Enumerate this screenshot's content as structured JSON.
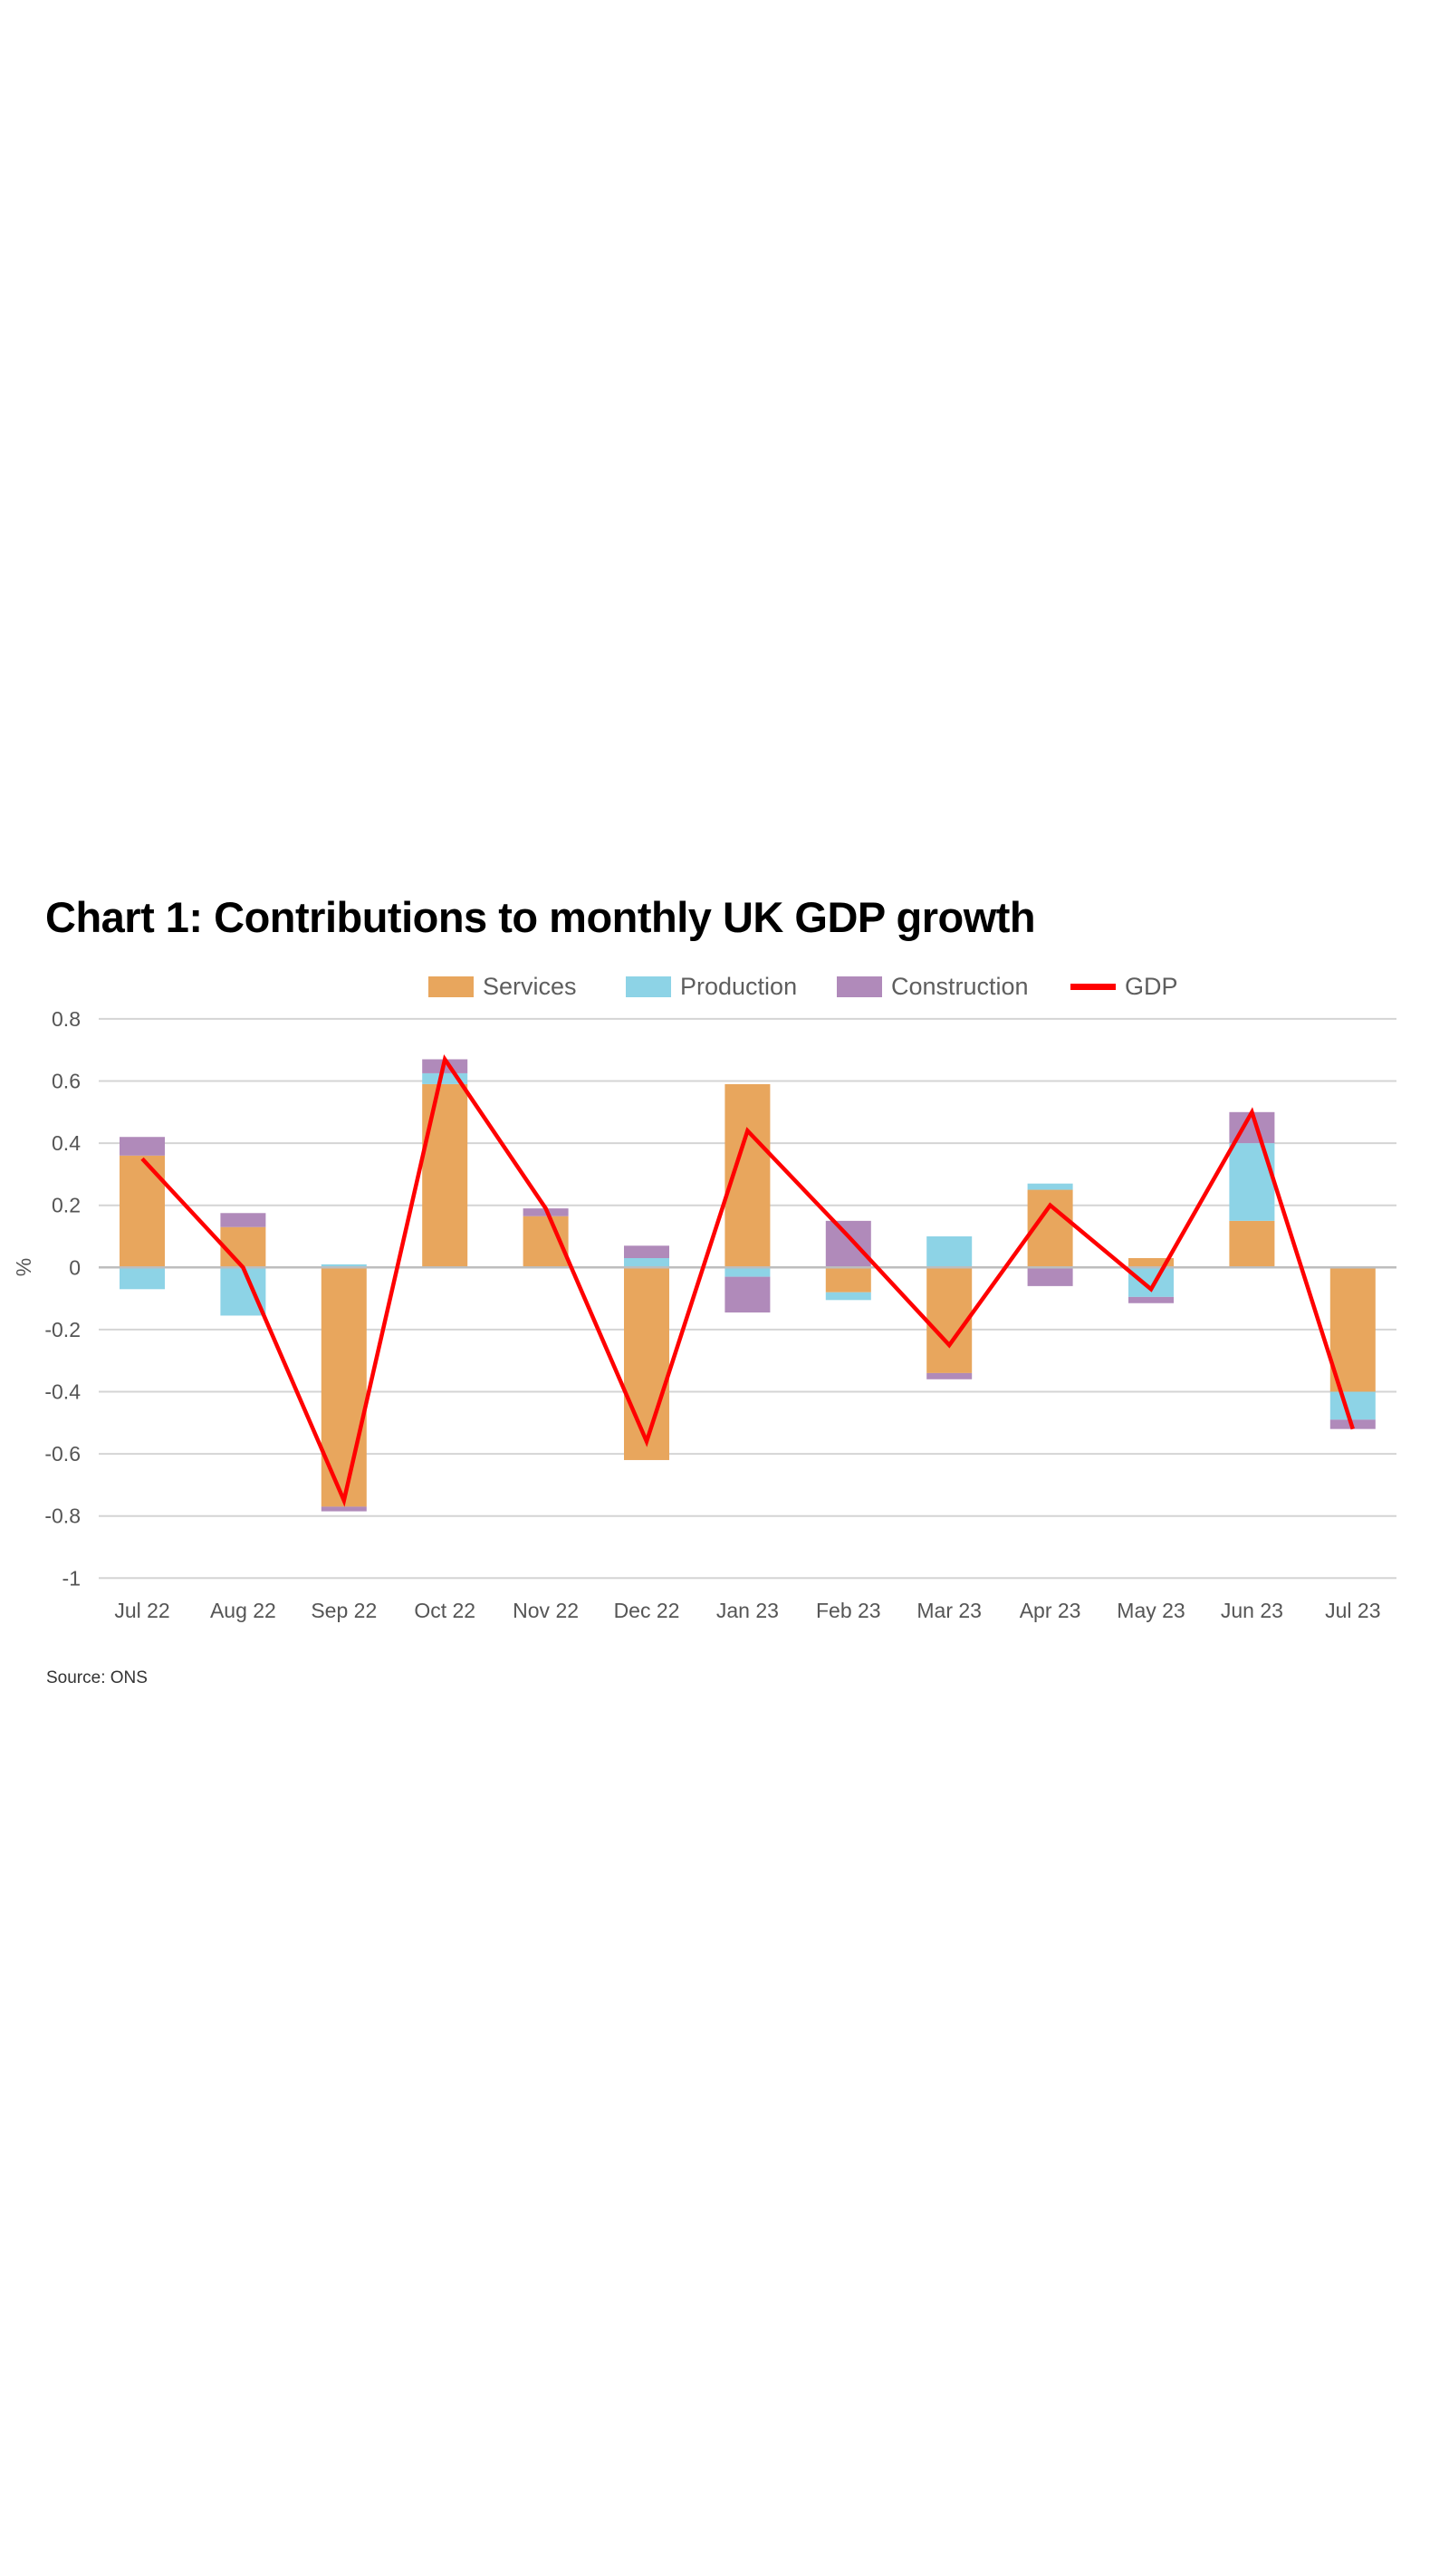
{
  "chart_data": {
    "type": "bar",
    "subtype": "stacked-bar-with-line",
    "title": "Chart 1: Contributions to monthly UK GDP growth",
    "xlabel": "",
    "ylabel": "%",
    "ylim": [
      -1,
      0.8
    ],
    "yticks": [
      0.8,
      0.6,
      0.4,
      0.2,
      0,
      -0.2,
      -0.4,
      -0.6,
      -0.8,
      -1
    ],
    "ytick_labels": [
      "0.8",
      "0.6",
      "0.4",
      "0.2",
      "0",
      "-0.2",
      "-0.4",
      "-0.6",
      "-0.8",
      "-1"
    ],
    "grid": true,
    "legend_position": "top",
    "categories": [
      "Jul 22",
      "Aug 22",
      "Sep 22",
      "Oct 22",
      "Nov 22",
      "Dec 22",
      "Jan 23",
      "Feb 23",
      "Mar 23",
      "Apr 23",
      "May 23",
      "Jun 23",
      "Jul 23"
    ],
    "series": [
      {
        "name": "Services",
        "kind": "bar",
        "color": "#E8A65D",
        "values": [
          0.36,
          0.13,
          -0.77,
          0.59,
          0.165,
          -0.62,
          0.59,
          -0.08,
          -0.34,
          0.25,
          0.03,
          0.15,
          -0.4
        ]
      },
      {
        "name": "Production",
        "kind": "bar",
        "color": "#8DD3E6",
        "values": [
          -0.07,
          -0.155,
          0.01,
          0.035,
          0.0,
          0.03,
          -0.03,
          -0.025,
          0.1,
          0.02,
          -0.095,
          0.25,
          -0.09
        ]
      },
      {
        "name": "Construction",
        "kind": "bar",
        "color": "#B08ABA",
        "values": [
          0.06,
          0.045,
          -0.015,
          0.045,
          0.025,
          0.04,
          -0.115,
          0.15,
          -0.02,
          -0.06,
          -0.02,
          0.1,
          -0.03
        ]
      },
      {
        "name": "GDP",
        "kind": "line",
        "color": "#FF0000",
        "values": [
          0.35,
          0.0,
          -0.75,
          0.67,
          0.19,
          -0.56,
          0.44,
          0.1,
          -0.25,
          0.2,
          -0.07,
          0.5,
          -0.52
        ]
      }
    ],
    "source": "Source: ONS"
  },
  "legend": {
    "items": [
      {
        "label": "Services",
        "color": "#E8A65D",
        "kind": "swatch"
      },
      {
        "label": "Production",
        "color": "#8DD3E6",
        "kind": "swatch"
      },
      {
        "label": "Construction",
        "color": "#B08ABA",
        "kind": "swatch"
      },
      {
        "label": "GDP",
        "color": "#FF0000",
        "kind": "line"
      }
    ]
  },
  "colors": {
    "gridline": "#D4D4D4",
    "zero_line": "#BDBDBD",
    "text": "#555555"
  }
}
